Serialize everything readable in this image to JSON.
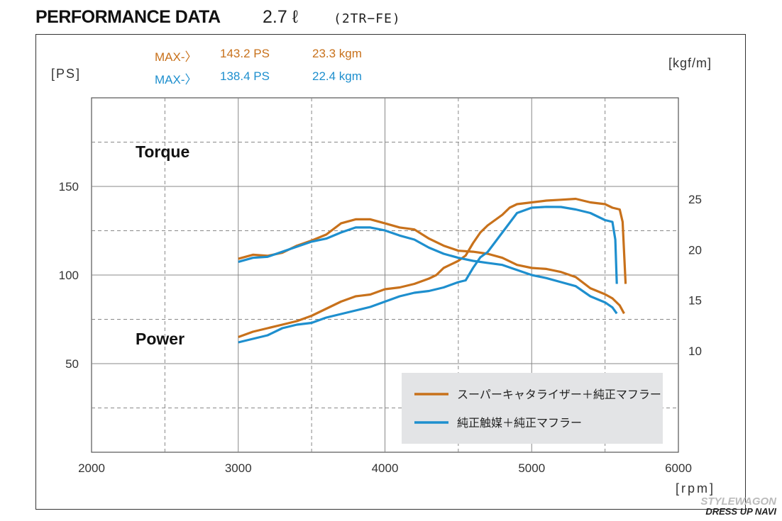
{
  "header": {
    "title": "PERFORMANCE DATA",
    "engine": "2.7 ℓ",
    "code": "(2TR−FE)"
  },
  "max": {
    "label": "MAX-〉",
    "series1": {
      "ps": "143.2 PS",
      "torque": "23.3 kgm"
    },
    "series2": {
      "ps": "138.4 PS",
      "torque": "22.4 kgm"
    }
  },
  "watermark": {
    "line1": "STYLEWAGON",
    "line2": "DRESS UP NAVI"
  },
  "colors": {
    "series1": "#c8711b",
    "series2": "#1e8fce",
    "grid": "#888888",
    "legend_bg": "#e3e4e6"
  },
  "chart_data": {
    "type": "line",
    "x_range": [
      2000,
      6000
    ],
    "y_left_range": [
      0,
      200
    ],
    "y_right_range": [
      0,
      35
    ],
    "xticks": [
      2000,
      3000,
      4000,
      5000,
      6000
    ],
    "xlabel": "[rpm]",
    "ylabel_left": "[PS]",
    "ylabel_right": "[kgf/m]",
    "yticks_left": [
      "50",
      "100",
      "150"
    ],
    "yticks_right": [
      "10",
      "15",
      "20",
      "25"
    ],
    "curve_labels": {
      "torque": "Torque",
      "power": "Power"
    },
    "series": [
      {
        "name": "スーパーキャタライザー＋純正マフラー",
        "color_key": "series1",
        "power": {
          "x": [
            3000,
            3100,
            3200,
            3300,
            3400,
            3500,
            3600,
            3700,
            3800,
            3900,
            4000,
            4100,
            4200,
            4300,
            4350,
            4400,
            4500,
            4550,
            4600,
            4650,
            4700,
            4800,
            4850,
            4900,
            5000,
            5100,
            5200,
            5300,
            5400,
            5500,
            5550,
            5600,
            5620,
            5640
          ],
          "y": [
            65,
            68,
            70,
            72,
            74,
            77,
            81,
            85,
            88,
            89,
            92,
            93,
            95,
            98,
            100,
            104,
            108,
            111,
            118,
            124,
            128,
            134,
            138,
            140,
            141,
            142,
            142.5,
            143,
            141,
            140,
            138,
            137,
            130,
            95
          ]
        },
        "torque": {
          "x": [
            3000,
            3100,
            3200,
            3300,
            3400,
            3500,
            3600,
            3700,
            3800,
            3900,
            4000,
            4100,
            4200,
            4300,
            4400,
            4500,
            4600,
            4700,
            4800,
            4900,
            5000,
            5100,
            5200,
            5300,
            5400,
            5500,
            5550,
            5600,
            5630
          ],
          "y": [
            19.1,
            19.5,
            19.4,
            19.7,
            20.4,
            20.9,
            21.5,
            22.6,
            23.0,
            23.0,
            22.6,
            22.2,
            22.0,
            21.1,
            20.4,
            19.9,
            19.8,
            19.6,
            19.2,
            18.5,
            18.2,
            18.1,
            17.8,
            17.3,
            16.2,
            15.6,
            15.2,
            14.5,
            13.7
          ]
        }
      },
      {
        "name": "純正触媒＋純正マフラー",
        "color_key": "series2",
        "power": {
          "x": [
            3000,
            3100,
            3200,
            3300,
            3400,
            3500,
            3600,
            3700,
            3800,
            3900,
            4000,
            4100,
            4200,
            4300,
            4400,
            4500,
            4550,
            4600,
            4650,
            4700,
            4800,
            4900,
            5000,
            5100,
            5200,
            5300,
            5400,
            5500,
            5550,
            5570,
            5580
          ],
          "y": [
            62,
            64,
            66,
            70,
            72,
            73,
            76,
            78,
            80,
            82,
            85,
            88,
            90,
            91,
            93,
            96,
            97,
            104,
            110,
            113,
            124,
            135,
            138,
            138.5,
            138.4,
            137,
            135,
            131,
            130,
            120,
            95
          ]
        },
        "torque": {
          "x": [
            3000,
            3100,
            3200,
            3300,
            3400,
            3500,
            3600,
            3700,
            3800,
            3900,
            4000,
            4100,
            4200,
            4300,
            4400,
            4500,
            4600,
            4700,
            4800,
            4900,
            5000,
            5100,
            5200,
            5300,
            5400,
            5500,
            5550,
            5580
          ],
          "y": [
            18.8,
            19.2,
            19.3,
            19.8,
            20.3,
            20.8,
            21.1,
            21.7,
            22.2,
            22.2,
            21.9,
            21.4,
            21.0,
            20.2,
            19.6,
            19.2,
            18.9,
            18.7,
            18.5,
            18.0,
            17.5,
            17.2,
            16.8,
            16.4,
            15.4,
            14.8,
            14.3,
            13.7
          ]
        }
      }
    ],
    "legend": [
      "スーパーキャタライザー＋純正マフラー",
      "純正触媒＋純正マフラー"
    ]
  }
}
